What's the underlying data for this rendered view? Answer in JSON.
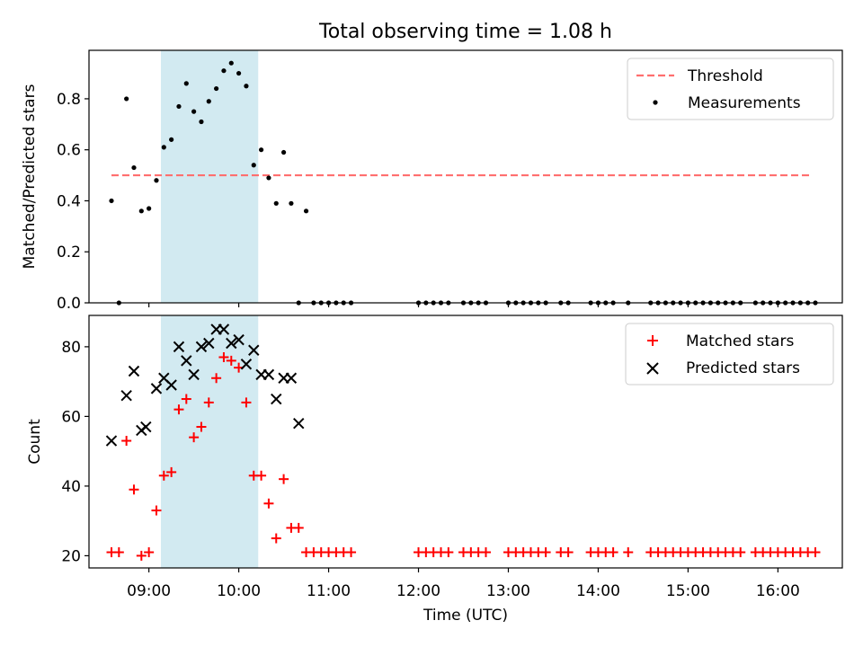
{
  "chart_data": [
    {
      "type": "scatter",
      "title": "Total observing time = 1.08 h",
      "xlabel": "",
      "ylabel": "Matched/Predicted stars",
      "ylim": [
        0,
        0.99
      ],
      "yticks": [
        "0.0",
        "0.2",
        "0.4",
        "0.6",
        "0.8"
      ],
      "grid": false,
      "legend_position": "top-right",
      "highlight_span": {
        "start": "09:08",
        "end": "10:13",
        "color": "#add8e6"
      },
      "threshold": {
        "name": "Threshold",
        "value": 0.5,
        "x_start": "08:35",
        "x_end": "16:22",
        "color": "#ff6f6f"
      },
      "series": [
        {
          "name": "Measurements",
          "color": "#000000",
          "x": [
            "08:35",
            "08:40",
            "08:45",
            "08:50",
            "08:55",
            "09:00",
            "09:05",
            "09:10",
            "09:15",
            "09:20",
            "09:25",
            "09:30",
            "09:35",
            "09:40",
            "09:45",
            "09:50",
            "09:55",
            "10:00",
            "10:05",
            "10:10",
            "10:15",
            "10:20",
            "10:25",
            "10:30",
            "10:35",
            "10:40",
            "10:45",
            "10:50",
            "10:55",
            "11:00",
            "11:05",
            "11:10",
            "11:15",
            "12:00",
            "12:05",
            "12:10",
            "12:15",
            "12:20",
            "12:30",
            "12:35",
            "12:40",
            "12:45",
            "13:00",
            "13:05",
            "13:10",
            "13:15",
            "13:20",
            "13:25",
            "13:35",
            "13:40",
            "13:55",
            "14:00",
            "14:05",
            "14:10",
            "14:20",
            "14:35",
            "14:40",
            "14:45",
            "14:50",
            "14:55",
            "15:00",
            "15:05",
            "15:10",
            "15:15",
            "15:20",
            "15:25",
            "15:30",
            "15:35",
            "15:45",
            "15:50",
            "15:55",
            "16:00",
            "16:05",
            "16:10",
            "16:15",
            "16:20",
            "16:25"
          ],
          "y": [
            0.4,
            0,
            0.8,
            0.53,
            0.36,
            0.37,
            0.48,
            0.61,
            0.64,
            0.77,
            0.86,
            0.75,
            0.71,
            0.79,
            0.84,
            0.91,
            0.94,
            0.9,
            0.85,
            0.54,
            0.6,
            0.49,
            0.39,
            0.59,
            0.39,
            0,
            0.36,
            0,
            0,
            0,
            0,
            0,
            0,
            0,
            0,
            0,
            0,
            0,
            0,
            0,
            0,
            0,
            0,
            0,
            0,
            0,
            0,
            0,
            0,
            0,
            0,
            0,
            0,
            0,
            0,
            0,
            0,
            0,
            0,
            0,
            0,
            0,
            0,
            0,
            0,
            0,
            0,
            0,
            0,
            0,
            0,
            0,
            0,
            0,
            0,
            0,
            0
          ]
        }
      ]
    },
    {
      "type": "scatter",
      "title": "",
      "xlabel": "Time (UTC)",
      "ylabel": "Count",
      "ylim": [
        16.5,
        89
      ],
      "yticks": [
        "20",
        "40",
        "60",
        "80"
      ],
      "xticks": [
        "09:00",
        "10:00",
        "11:00",
        "12:00",
        "13:00",
        "14:00",
        "15:00",
        "16:00"
      ],
      "grid": false,
      "legend_position": "top-right",
      "highlight_span": {
        "start": "09:08",
        "end": "10:13",
        "color": "#add8e6"
      },
      "series": [
        {
          "name": "Matched stars",
          "marker": "+",
          "color": "#ff0000",
          "x": [
            "08:35",
            "08:40",
            "08:45",
            "08:50",
            "08:55",
            "09:00",
            "09:05",
            "09:10",
            "09:15",
            "09:20",
            "09:25",
            "09:30",
            "09:35",
            "09:40",
            "09:45",
            "09:50",
            "09:55",
            "10:00",
            "10:05",
            "10:10",
            "10:15",
            "10:20",
            "10:25",
            "10:30",
            "10:35",
            "10:40",
            "10:45",
            "10:50",
            "10:55",
            "11:00",
            "11:05",
            "11:10",
            "11:15",
            "12:00",
            "12:05",
            "12:10",
            "12:15",
            "12:20",
            "12:30",
            "12:35",
            "12:40",
            "12:45",
            "13:00",
            "13:05",
            "13:10",
            "13:15",
            "13:20",
            "13:25",
            "13:35",
            "13:40",
            "13:55",
            "14:00",
            "14:05",
            "14:10",
            "14:20",
            "14:35",
            "14:40",
            "14:45",
            "14:50",
            "14:55",
            "15:00",
            "15:05",
            "15:10",
            "15:15",
            "15:20",
            "15:25",
            "15:30",
            "15:35",
            "15:45",
            "15:50",
            "15:55",
            "16:00",
            "16:05",
            "16:10",
            "16:15",
            "16:20",
            "16:25"
          ],
          "y": [
            21,
            21,
            53,
            39,
            20,
            21,
            33,
            43,
            44,
            62,
            65,
            54,
            57,
            64,
            71,
            77,
            76,
            74,
            64,
            43,
            43,
            35,
            25,
            42,
            28,
            28,
            21,
            21,
            21,
            21,
            21,
            21,
            21,
            21,
            21,
            21,
            21,
            21,
            21,
            21,
            21,
            21,
            21,
            21,
            21,
            21,
            21,
            21,
            21,
            21,
            21,
            21,
            21,
            21,
            21,
            21,
            21,
            21,
            21,
            21,
            21,
            21,
            21,
            21,
            21,
            21,
            21,
            21,
            21,
            21,
            21,
            21,
            21,
            21,
            21,
            21,
            21
          ]
        },
        {
          "name": "Predicted stars",
          "marker": "x",
          "color": "#000000",
          "x": [
            "08:35",
            "08:45",
            "08:50",
            "08:55",
            "08:58",
            "09:05",
            "09:10",
            "09:15",
            "09:20",
            "09:25",
            "09:30",
            "09:35",
            "09:40",
            "09:45",
            "09:50",
            "09:55",
            "10:00",
            "10:05",
            "10:10",
            "10:15",
            "10:20",
            "10:25",
            "10:30",
            "10:35",
            "10:40"
          ],
          "y": [
            53,
            66,
            73,
            56,
            57,
            68,
            71,
            69,
            80,
            76,
            72,
            80,
            81,
            85,
            85,
            81,
            82,
            75,
            79,
            72,
            72,
            65,
            71,
            71,
            58
          ]
        }
      ]
    }
  ]
}
